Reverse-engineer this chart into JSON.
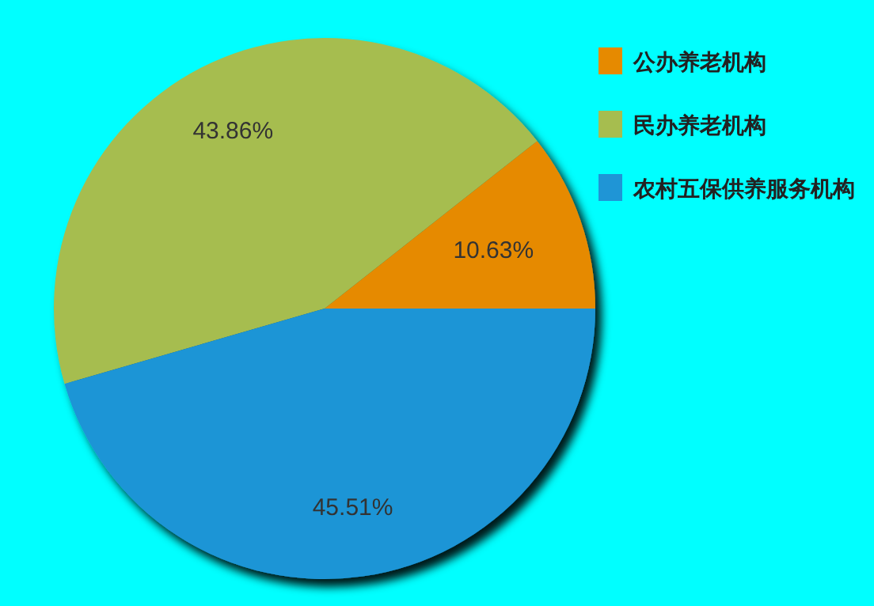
{
  "chart_data": {
    "type": "pie",
    "categories": [
      "公办养老机构",
      "民办养老机构",
      "农村五保供养服务机构"
    ],
    "values": [
      10.63,
      43.86,
      45.51
    ],
    "colors": [
      "#e68a00",
      "#a6bd4f",
      "#1f95d6"
    ],
    "value_labels": [
      "10.63%",
      "43.86%",
      "45.51%"
    ],
    "legend": "top right"
  }
}
